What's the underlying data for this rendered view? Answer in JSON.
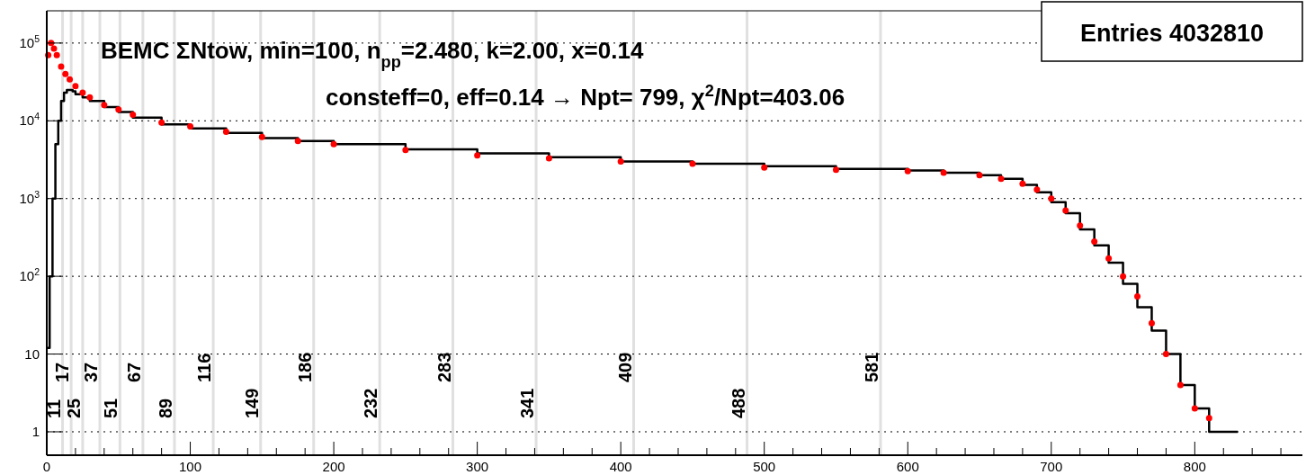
{
  "chart_data": {
    "type": "step",
    "title": "BEMC ΣNtow, min=100, n$_{pp}$=2.480, k=2.00, x=0.14",
    "subtitle": "consteff=0, eff=0.14 → Npt= 799, χ$^{2}$/Npt=403.06",
    "annotations": [
      "Entries 4032810"
    ],
    "xlim": [
      0,
      875
    ],
    "ylim": [
      0.5,
      260000
    ],
    "log": "y",
    "grid": "y",
    "xticks": [
      0,
      {
        "value": 20,
        "label": null
      },
      {
        "value": 40,
        "label": null
      },
      {
        "value": 60,
        "label": null
      },
      {
        "value": 80,
        "label": null
      },
      100,
      {
        "value": 120,
        "label": null
      },
      {
        "value": 140,
        "label": null
      },
      {
        "value": 160,
        "label": null
      },
      {
        "value": 180,
        "label": null
      },
      200,
      {
        "value": 220,
        "label": null
      },
      {
        "value": 240,
        "label": null
      },
      {
        "value": 260,
        "label": null
      },
      {
        "value": 280,
        "label": null
      },
      300,
      {
        "value": 320,
        "label": null
      },
      {
        "value": 340,
        "label": null
      },
      {
        "value": 360,
        "label": null
      },
      {
        "value": 380,
        "label": null
      },
      400,
      {
        "value": 420,
        "label": null
      },
      {
        "value": 440,
        "label": null
      },
      {
        "value": 460,
        "label": null
      },
      {
        "value": 480,
        "label": null
      },
      500,
      {
        "value": 520,
        "label": null
      },
      {
        "value": 540,
        "label": null
      },
      {
        "value": 560,
        "label": null
      },
      {
        "value": 580,
        "label": null
      },
      600,
      {
        "value": 620,
        "label": null
      },
      {
        "value": 640,
        "label": null
      },
      {
        "value": 660,
        "label": null
      },
      {
        "value": 680,
        "label": null
      },
      700,
      {
        "value": 720,
        "label": null
      },
      {
        "value": 740,
        "label": null
      },
      {
        "value": 760,
        "label": null
      },
      {
        "value": 780,
        "label": null
      },
      800,
      {
        "value": 820,
        "label": null
      },
      {
        "value": 840,
        "label": null
      },
      {
        "value": 860,
        "label": null
      }
    ],
    "yticks": [
      1,
      10,
      {
        "value": 100,
        "label": "10$^{2}$"
      },
      {
        "value": 1000,
        "label": "10$^{3}$"
      },
      {
        "value": 10000,
        "label": "10$^{4}$"
      },
      {
        "value": 100000,
        "label": "10$^{5}$"
      }
    ],
    "ref_lines": [
      {
        "axis": "x",
        "value": 11,
        "label": "11",
        "color": "#e0e0e0"
      },
      {
        "axis": "x",
        "value": 17,
        "label": "17",
        "color": "#e0e0e0"
      },
      {
        "axis": "x",
        "value": 25,
        "label": "25",
        "color": "#e0e0e0"
      },
      {
        "axis": "x",
        "value": 37,
        "label": "37",
        "color": "#e0e0e0"
      },
      {
        "axis": "x",
        "value": 51,
        "label": "51",
        "color": "#e0e0e0"
      },
      {
        "axis": "x",
        "value": 67,
        "label": "67",
        "color": "#e0e0e0"
      },
      {
        "axis": "x",
        "value": 89,
        "label": "89",
        "color": "#e0e0e0"
      },
      {
        "axis": "x",
        "value": 116,
        "label": "116",
        "color": "#e0e0e0"
      },
      {
        "axis": "x",
        "value": 149,
        "label": "149",
        "color": "#e0e0e0"
      },
      {
        "axis": "x",
        "value": 186,
        "label": "186",
        "color": "#e0e0e0"
      },
      {
        "axis": "x",
        "value": 232,
        "label": "232",
        "color": "#e0e0e0"
      },
      {
        "axis": "x",
        "value": 283,
        "label": "283",
        "color": "#e0e0e0"
      },
      {
        "axis": "x",
        "value": 341,
        "label": "341",
        "color": "#e0e0e0"
      },
      {
        "axis": "x",
        "value": 409,
        "label": "409",
        "color": "#e0e0e0"
      },
      {
        "axis": "x",
        "value": 488,
        "label": "488",
        "color": "#e0e0e0"
      },
      {
        "axis": "x",
        "value": 581,
        "label": "581",
        "color": "#e0e0e0"
      }
    ],
    "series": [
      {
        "color": "#000000",
        "x": [
          0,
          2,
          4,
          6,
          8,
          10,
          12,
          14,
          16,
          18,
          20,
          25,
          30,
          40,
          50,
          60,
          80,
          100,
          125,
          150,
          175,
          200,
          250,
          300,
          350,
          400,
          450,
          500,
          550,
          600,
          625,
          650,
          665,
          680,
          690,
          700,
          710,
          720,
          730,
          740,
          750,
          760,
          770,
          780,
          790,
          800,
          810,
          830
        ],
        "values": [
          12,
          100,
          1000,
          5000,
          10000,
          18000,
          23000,
          25000,
          25000,
          24000,
          22000,
          20000,
          18000,
          15000,
          13000,
          11000,
          9000,
          8000,
          7000,
          6000,
          5500,
          5000,
          4300,
          3800,
          3400,
          3000,
          2800,
          2600,
          2400,
          2300,
          2150,
          2000,
          1800,
          1500,
          1200,
          900,
          650,
          400,
          250,
          150,
          80,
          40,
          20,
          10,
          4,
          2,
          1,
          1
        ]
      },
      {
        "type": "scatter",
        "color": "#ff0000",
        "marker": "circle",
        "x": [
          1,
          3,
          5,
          7,
          10,
          13,
          16,
          20,
          25,
          30,
          40,
          50,
          60,
          80,
          100,
          125,
          150,
          175,
          200,
          250,
          300,
          350,
          400,
          450,
          500,
          550,
          600,
          625,
          650,
          665,
          680,
          690,
          700,
          710,
          720,
          730,
          740,
          750,
          760,
          770,
          780,
          790,
          800,
          810
        ],
        "values": [
          70000,
          100000,
          85000,
          70000,
          50000,
          40000,
          34000,
          28000,
          23000,
          20000,
          16000,
          14000,
          12000,
          9500,
          8500,
          7200,
          6200,
          5500,
          5000,
          4200,
          3600,
          3300,
          3000,
          2800,
          2500,
          2350,
          2250,
          2150,
          2000,
          1800,
          1550,
          1300,
          1000,
          700,
          450,
          280,
          170,
          100,
          55,
          25,
          10,
          4,
          2,
          1.5
        ]
      }
    ]
  }
}
